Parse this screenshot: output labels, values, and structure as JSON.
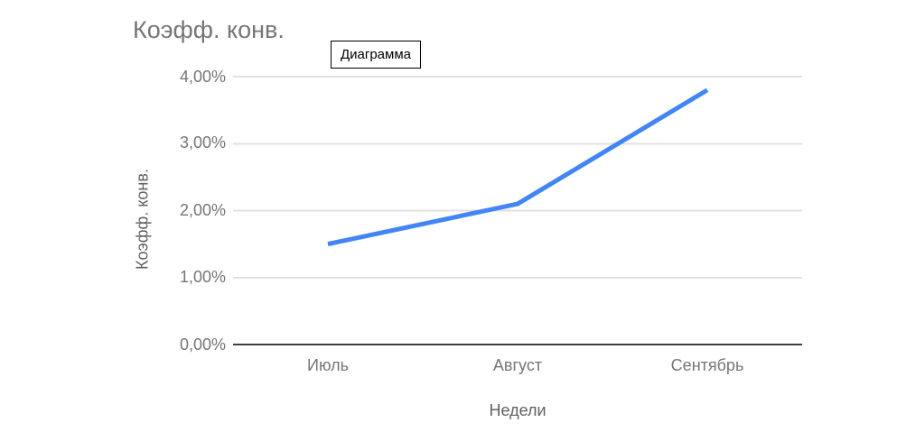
{
  "tooltip": {
    "label": "Диаграмма"
  },
  "chart_data": {
    "type": "line",
    "title": "Коэфф. конв.",
    "categories": [
      "Июль",
      "Август",
      "Сентябрь"
    ],
    "series": [
      {
        "name": "Коэфф. конв.",
        "values": [
          1.5,
          2.1,
          3.8
        ]
      }
    ],
    "xlabel": "Недели",
    "ylabel": "Коэфф. конв.",
    "ylim": [
      0,
      4
    ],
    "y_ticks": [
      0,
      1,
      2,
      3,
      4
    ],
    "y_tick_labels": [
      "0,00%",
      "1,00%",
      "2,00%",
      "3,00%",
      "4,00%"
    ],
    "grid": true,
    "legend": "none",
    "colors": {
      "line": "#4285f4",
      "axis_line": "#3f3f3f",
      "gridline": "#e2e2e2",
      "title_text": "#757575",
      "tick_text": "#757575",
      "axis_title_text": "#616161"
    }
  }
}
